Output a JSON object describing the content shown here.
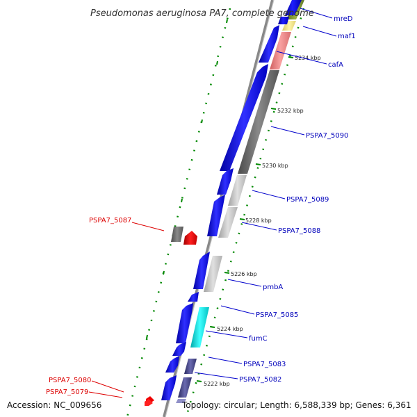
{
  "title": "Pseudomonas aeruginosa PA7, complete genome",
  "accession_label": "Accession: NC_009656",
  "topology_label": "Topology: circular; Length: 6,588,339 bp; Genes: 6,361",
  "colors": {
    "forward_gene": "#0000ee",
    "reverse_gene": "#ee0000",
    "forward_label": "#0000bb",
    "reverse_label": "#dd0000",
    "backbone": "#888888",
    "tick": "#008800",
    "dot": "#008800"
  },
  "ticks": [
    {
      "label": "5234 kbp"
    },
    {
      "label": "5232 kbp"
    },
    {
      "label": "5230 kbp"
    },
    {
      "label": "5228 kbp"
    },
    {
      "label": "5226 kbp"
    },
    {
      "label": "5224 kbp"
    },
    {
      "label": "5222 kbp"
    }
  ],
  "gene_labels": [
    {
      "name": "mreD",
      "strand": "forward"
    },
    {
      "name": "maf1",
      "strand": "forward"
    },
    {
      "name": "cafA",
      "strand": "forward"
    },
    {
      "name": "PSPA7_5090",
      "strand": "forward"
    },
    {
      "name": "PSPA7_5089",
      "strand": "forward"
    },
    {
      "name": "PSPA7_5088",
      "strand": "forward"
    },
    {
      "name": "pmbA",
      "strand": "forward"
    },
    {
      "name": "PSPA7_5085",
      "strand": "forward"
    },
    {
      "name": "fumC",
      "strand": "forward"
    },
    {
      "name": "PSPA7_5083",
      "strand": "forward"
    },
    {
      "name": "PSPA7_5082",
      "strand": "forward"
    },
    {
      "name": "PSPA7_5087",
      "strand": "reverse"
    },
    {
      "name": "PSPA7_5080",
      "strand": "reverse"
    },
    {
      "name": "PSPA7_5079",
      "strand": "reverse"
    }
  ]
}
